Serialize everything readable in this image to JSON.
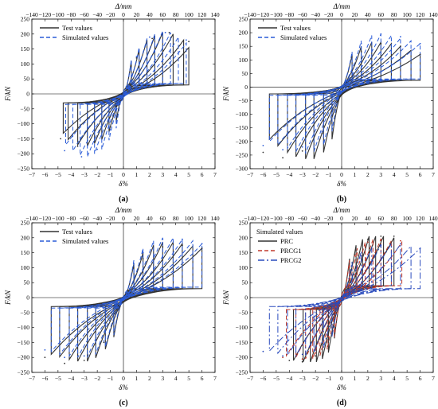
{
  "colors": {
    "test": "#333333",
    "sim": "#2a5bd7",
    "prc": "#333333",
    "prcg1": "#c0392b",
    "prcg2": "#2a4bbd",
    "axis": "#000000"
  },
  "chart_data": [
    {
      "type": "line",
      "panel_label": "(a)",
      "xlabel": "δ%",
      "top_xlabel": "Δ/mm",
      "ylabel": "F/kN",
      "xlim": [
        -7,
        7
      ],
      "ylim": [
        -250,
        250
      ],
      "xticks": [
        "-7",
        "-6",
        "-5",
        "-4",
        "-3",
        "-2",
        "-1",
        "0",
        "1",
        "2",
        "3",
        "4",
        "5",
        "6",
        "7"
      ],
      "yticks": [
        "-250",
        "-200",
        "-150",
        "-100",
        "-50",
        "0",
        "50",
        "100",
        "150",
        "200",
        "250"
      ],
      "top_ticks": [
        "-140",
        "-120",
        "-100",
        "-80",
        "-60",
        "-40",
        "-20",
        "0",
        "20",
        "40",
        "60",
        "80",
        "100",
        "120",
        "140"
      ],
      "legend_title": "",
      "legend_placement": "top-left",
      "series": [
        {
          "name": "Test values",
          "style": "solid",
          "color": "test",
          "x": [
            -4.8,
            -3.5,
            -2.2,
            -1.0,
            0.0,
            1.0,
            2.2,
            3.5,
            5.0
          ],
          "y": [
            -150,
            -175,
            -160,
            -110,
            0,
            120,
            185,
            205,
            175
          ]
        },
        {
          "name": "Simulated values",
          "style": "dash",
          "color": "sim",
          "x": [
            -4.5,
            -3.2,
            -2.0,
            -1.0,
            0.0,
            1.0,
            2.0,
            3.2,
            4.8
          ],
          "y": [
            -190,
            -210,
            -185,
            -120,
            0,
            125,
            190,
            205,
            180
          ]
        }
      ],
      "loops": [
        {
          "series": 0,
          "amp": [
            0.6,
            1.2,
            1.8,
            2.4,
            3.0,
            3.8,
            4.6,
            5.0
          ],
          "peakF": [
            110,
            150,
            180,
            195,
            205,
            200,
            180,
            155
          ],
          "fy": 30,
          "negScale": 0.85
        },
        {
          "series": 1,
          "amp": [
            0.6,
            1.2,
            1.8,
            2.4,
            3.0,
            3.6,
            4.2,
            4.8
          ],
          "peakF": [
            115,
            155,
            185,
            200,
            210,
            205,
            190,
            170
          ],
          "fy": 35,
          "negScale": 1.0
        }
      ]
    },
    {
      "type": "line",
      "panel_label": "(b)",
      "xlabel": "δ%",
      "top_xlabel": "Δ/mm",
      "ylabel": "F/kN",
      "xlim": [
        -7,
        7
      ],
      "ylim": [
        -300,
        250
      ],
      "xticks": [
        "-7",
        "-6",
        "-5",
        "-4",
        "-3",
        "-2",
        "-1",
        "0",
        "1",
        "2",
        "3",
        "4",
        "5",
        "6",
        "7"
      ],
      "yticks": [
        "-300",
        "-250",
        "-200",
        "-150",
        "-100",
        "-50",
        "0",
        "50",
        "100",
        "150",
        "200",
        "250"
      ],
      "top_ticks": [
        "-140",
        "-120",
        "-100",
        "-80",
        "-60",
        "-40",
        "-20",
        "0",
        "20",
        "40",
        "60",
        "80",
        "100",
        "120",
        "140"
      ],
      "legend_title": "",
      "legend_placement": "top-left",
      "series": [
        {
          "name": "Test values",
          "style": "solid",
          "color": "test",
          "x": [
            -6.0,
            -4.5,
            -3.0,
            -1.5,
            0.0,
            1.5,
            3.0,
            4.5,
            6.0
          ],
          "y": [
            -240,
            -260,
            -235,
            -170,
            0,
            130,
            160,
            150,
            120
          ]
        },
        {
          "name": "Simulated values",
          "style": "dash",
          "color": "sim",
          "x": [
            -6.0,
            -4.5,
            -3.0,
            -1.5,
            0.0,
            1.5,
            3.0,
            4.5,
            6.0
          ],
          "y": [
            -215,
            -230,
            -220,
            -165,
            0,
            160,
            195,
            185,
            160
          ]
        }
      ],
      "loops": [
        {
          "series": 0,
          "amp": [
            0.8,
            1.5,
            2.3,
            3.0,
            3.8,
            4.5,
            5.3,
            6.0
          ],
          "peakF": [
            120,
            150,
            165,
            165,
            160,
            150,
            135,
            120
          ],
          "fy": 25,
          "negScale": 1.6
        },
        {
          "series": 1,
          "amp": [
            0.8,
            1.5,
            2.3,
            3.0,
            3.8,
            4.5,
            5.3,
            6.0
          ],
          "peakF": [
            130,
            170,
            190,
            195,
            190,
            180,
            170,
            160
          ],
          "fy": 30,
          "negScale": 1.25
        }
      ]
    },
    {
      "type": "line",
      "panel_label": "(c)",
      "xlabel": "δ%",
      "top_xlabel": "Δ/mm",
      "ylabel": "F/kN",
      "xlim": [
        -7,
        7
      ],
      "ylim": [
        -250,
        250
      ],
      "xticks": [
        "-7",
        "-6",
        "-5",
        "-4",
        "-3",
        "-2",
        "-1",
        "0",
        "1",
        "2",
        "3",
        "4",
        "5",
        "6",
        "7"
      ],
      "yticks": [
        "-250",
        "-200",
        "-150",
        "-100",
        "-50",
        "0",
        "50",
        "100",
        "150",
        "200",
        "250"
      ],
      "top_ticks": [
        "-140",
        "-120",
        "-100",
        "-80",
        "-60",
        "-40",
        "-20",
        "0",
        "20",
        "40",
        "60",
        "80",
        "100",
        "120",
        "140"
      ],
      "legend_title": "",
      "legend_placement": "top-left",
      "series": [
        {
          "name": "Test values",
          "style": "solid",
          "color": "test",
          "x": [
            -6.0,
            -4.5,
            -3.0,
            -1.5,
            0.0,
            1.5,
            3.0,
            4.5,
            6.0
          ],
          "y": [
            -200,
            -220,
            -210,
            -150,
            0,
            130,
            170,
            175,
            165
          ]
        },
        {
          "name": "Simulated values",
          "style": "dash",
          "color": "sim",
          "x": [
            -6.0,
            -4.5,
            -3.0,
            -1.5,
            0.0,
            1.5,
            3.0,
            4.5,
            6.0
          ],
          "y": [
            -175,
            -200,
            -195,
            -145,
            0,
            150,
            195,
            195,
            180
          ]
        }
      ],
      "loops": [
        {
          "series": 0,
          "amp": [
            0.8,
            1.5,
            2.3,
            3.0,
            3.8,
            4.5,
            5.3,
            6.0
          ],
          "peakF": [
            115,
            150,
            175,
            185,
            185,
            180,
            172,
            165
          ],
          "fy": 30,
          "negScale": 1.15
        },
        {
          "series": 1,
          "amp": [
            0.8,
            1.5,
            2.3,
            3.0,
            3.8,
            4.5,
            5.3,
            6.0
          ],
          "peakF": [
            125,
            165,
            190,
            200,
            200,
            195,
            190,
            180
          ],
          "fy": 35,
          "negScale": 1.0
        }
      ]
    },
    {
      "type": "line",
      "panel_label": "(d)",
      "xlabel": "δ%",
      "top_xlabel": "Δ/mm",
      "ylabel": "F/kN",
      "xlim": [
        -7,
        7
      ],
      "ylim": [
        -250,
        250
      ],
      "xticks": [
        "-7",
        "-6",
        "-5",
        "-4",
        "-3",
        "-2",
        "-1",
        "0",
        "1",
        "2",
        "3",
        "4",
        "5",
        "6",
        "7"
      ],
      "yticks": [
        "-250",
        "-200",
        "-150",
        "-100",
        "-50",
        "0",
        "50",
        "100",
        "150",
        "200",
        "250"
      ],
      "top_ticks": [
        "-140",
        "-120",
        "-100",
        "-80",
        "-60",
        "-40",
        "-20",
        "0",
        "20",
        "40",
        "60",
        "80",
        "100",
        "120",
        "140"
      ],
      "legend_title": "Simulated values",
      "legend_placement": "top-left",
      "series": [
        {
          "name": "PRC",
          "style": "solid",
          "color": "prc",
          "x": [
            -4.0,
            -3.0,
            -2.0,
            -1.0,
            0.0,
            1.0,
            2.0,
            3.0,
            4.0
          ],
          "y": [
            -210,
            -215,
            -195,
            -140,
            0,
            145,
            195,
            205,
            205
          ]
        },
        {
          "name": "PRCG1",
          "style": "dash",
          "color": "prcg1",
          "x": [
            -4.5,
            -3.0,
            -2.0,
            -1.0,
            0.0,
            1.0,
            2.0,
            3.0,
            4.5
          ],
          "y": [
            -200,
            -205,
            -185,
            -130,
            0,
            140,
            185,
            195,
            190
          ]
        },
        {
          "name": "PRCG2",
          "style": "dashdot",
          "color": "prcg2",
          "x": [
            -6.0,
            -4.5,
            -3.0,
            -1.5,
            0.0,
            1.5,
            3.0,
            4.5,
            6.0
          ],
          "y": [
            -180,
            -195,
            -190,
            -150,
            0,
            140,
            175,
            180,
            165
          ]
        }
      ],
      "loops": [
        {
          "series": 0,
          "amp": [
            0.6,
            1.1,
            1.6,
            2.1,
            2.6,
            3.2,
            4.0
          ],
          "peakF": [
            130,
            175,
            195,
            205,
            205,
            205,
            200
          ],
          "fy": 40,
          "negScale": 1.05
        },
        {
          "series": 1,
          "amp": [
            0.6,
            1.2,
            1.8,
            2.4,
            3.0,
            3.8,
            4.6
          ],
          "peakF": [
            125,
            165,
            185,
            195,
            195,
            190,
            185
          ],
          "fy": 40,
          "negScale": 1.05
        },
        {
          "series": 2,
          "amp": [
            0.8,
            1.5,
            2.3,
            3.0,
            3.8,
            4.5,
            5.3,
            6.0
          ],
          "peakF": [
            120,
            155,
            170,
            178,
            180,
            178,
            172,
            165
          ],
          "fy": 30,
          "negScale": 1.08
        }
      ]
    }
  ]
}
